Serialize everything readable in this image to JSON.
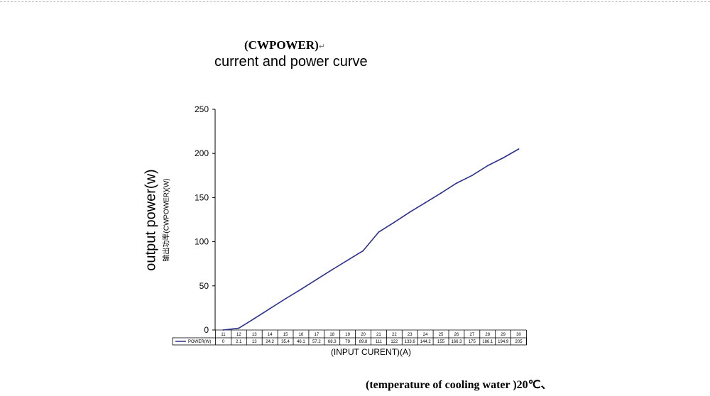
{
  "chart_data": {
    "type": "line",
    "title": "(CWPOWER)",
    "title_mark": "↵",
    "subtitle": "current and power curve",
    "ylabel": "output power(w)",
    "ylabel_secondary": "输出功率(CWPOWER)(W)",
    "xlabel": "(INPUT CURENT)(A)",
    "footer": "(temperature of cooling water )20℃、",
    "ylim": [
      0,
      250
    ],
    "yticks": [
      0,
      50,
      100,
      150,
      200,
      250
    ],
    "x": [
      11,
      12,
      13,
      14,
      15,
      16,
      17,
      18,
      19,
      20,
      21,
      22,
      23,
      24,
      25,
      26,
      27,
      28,
      29,
      30
    ],
    "x_labels": [
      "11",
      "12",
      "13",
      "14",
      "15",
      "16",
      "17",
      "18",
      "19",
      "20",
      "21",
      "22",
      "23",
      "24",
      "25",
      "26",
      "27",
      "28",
      "29",
      "30"
    ],
    "series": [
      {
        "name": "POWER(W)",
        "color": "#2b2f8f",
        "values": [
          0,
          2.1,
          13,
          24.2,
          35.4,
          46.1,
          57.2,
          68.3,
          79,
          89.8,
          111,
          122,
          133.6,
          144.2,
          155,
          166.3,
          175,
          186.1,
          194.9,
          205
        ],
        "value_labels": [
          "0",
          "2.1",
          "13",
          "24.2",
          "35.4",
          "46.1",
          "57.2",
          "68.3",
          "79",
          "89.8",
          "111",
          "122",
          "133.6",
          "144.2",
          "155",
          "166.3",
          "175",
          "186.1",
          "194.9",
          "205"
        ]
      }
    ],
    "legend": "bottom-left data table",
    "grid": false
  }
}
